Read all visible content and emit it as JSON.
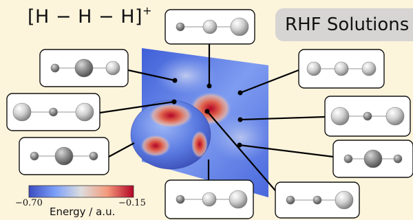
{
  "formula": {
    "main": "[H − H − H]",
    "charge": "+"
  },
  "badge": {
    "label": "RHF Solutions"
  },
  "colorbar": {
    "title": "Energy / a.u.",
    "min_label": "−0.70",
    "max_label": "−0.15",
    "min": -0.7,
    "max": -0.15,
    "low_color": "#3b4cc0",
    "mid_color": "#dddddd",
    "high_color": "#b40426"
  },
  "colors": {
    "background": "#fdf4dc",
    "badge": "#d7d5d3",
    "leader": "#000000"
  },
  "molecule_insets": [
    {
      "id": "inset-top-center",
      "atoms": [
        "small",
        "medium",
        "large"
      ]
    },
    {
      "id": "inset-upper-left",
      "atoms": [
        "small",
        "large",
        "medium"
      ]
    },
    {
      "id": "inset-left",
      "atoms": [
        "large",
        "small",
        "large"
      ]
    },
    {
      "id": "inset-lower-left",
      "atoms": [
        "small",
        "large",
        "small"
      ]
    },
    {
      "id": "inset-bottom-center",
      "atoms": [
        "small",
        "medium",
        "large"
      ]
    },
    {
      "id": "inset-upper-right",
      "atoms": [
        "medium",
        "medium",
        "medium"
      ]
    },
    {
      "id": "inset-right",
      "atoms": [
        "large",
        "small",
        "large"
      ]
    },
    {
      "id": "inset-lower-right",
      "atoms": [
        "small",
        "large",
        "small"
      ]
    },
    {
      "id": "inset-bottom-right",
      "atoms": [
        "small",
        "small",
        "large"
      ]
    }
  ]
}
